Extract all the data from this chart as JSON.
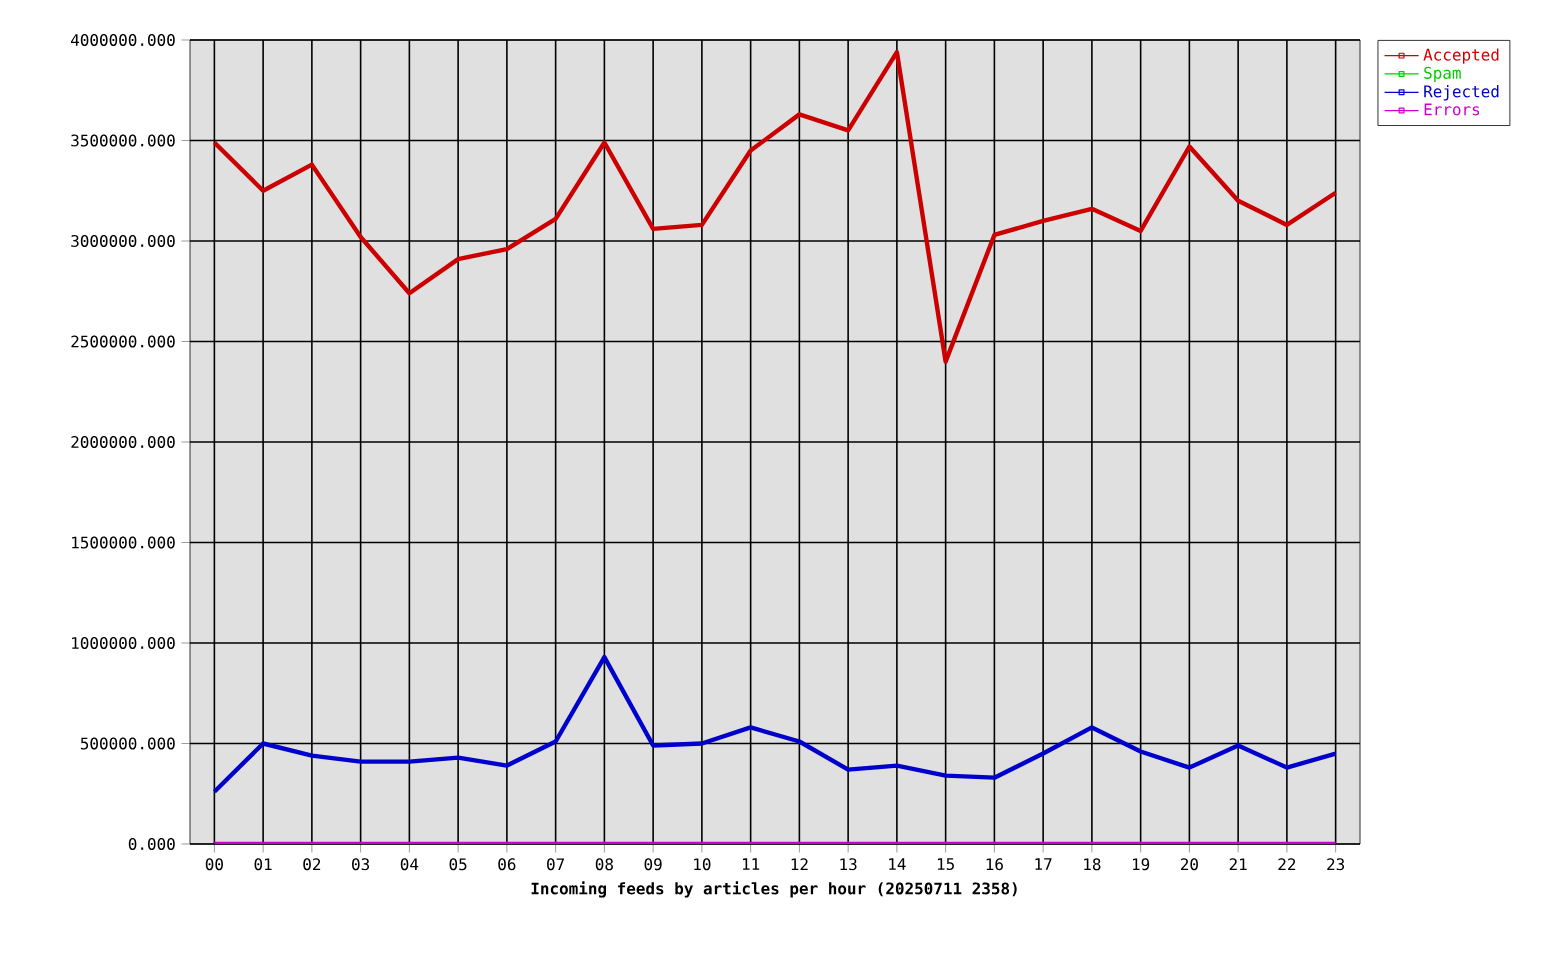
{
  "chart_data": {
    "type": "line",
    "xlabel": "Incoming feeds by articles per hour (20250711 2358)",
    "categories": [
      "00",
      "01",
      "02",
      "03",
      "04",
      "05",
      "06",
      "07",
      "08",
      "09",
      "10",
      "11",
      "12",
      "13",
      "14",
      "15",
      "16",
      "17",
      "18",
      "19",
      "20",
      "21",
      "22",
      "23"
    ],
    "series": [
      {
        "name": "Accepted",
        "color": "#cc0000",
        "values": [
          3490000,
          3250000,
          3380000,
          3020000,
          2740000,
          2910000,
          2960000,
          3110000,
          3490000,
          3060000,
          3080000,
          3450000,
          3630000,
          3550000,
          3940000,
          2400000,
          3030000,
          3100000,
          3160000,
          3050000,
          3470000,
          3200000,
          3080000,
          3240000
        ]
      },
      {
        "name": "Spam",
        "color": "#00cc00",
        "values": [
          null,
          null,
          null,
          null,
          null,
          null,
          null,
          null,
          null,
          null,
          null,
          null,
          null,
          null,
          null,
          null,
          null,
          null,
          null,
          null,
          null,
          null,
          null,
          null
        ]
      },
      {
        "name": "Rejected",
        "color": "#0000cc",
        "values": [
          260000,
          500000,
          440000,
          410000,
          410000,
          430000,
          390000,
          510000,
          930000,
          490000,
          500000,
          580000,
          510000,
          370000,
          390000,
          340000,
          330000,
          450000,
          580000,
          460000,
          380000,
          490000,
          380000,
          450000
        ]
      },
      {
        "name": "Errors",
        "color": "#cc00cc",
        "values": [
          0,
          0,
          0,
          0,
          0,
          0,
          0,
          0,
          0,
          0,
          0,
          0,
          0,
          0,
          0,
          0,
          0,
          0,
          0,
          0,
          0,
          0,
          0,
          0
        ]
      }
    ],
    "ylim": [
      0,
      4000000
    ],
    "yticks": [
      {
        "value": 0,
        "label": "0.000"
      },
      {
        "value": 500000,
        "label": "500000.000"
      },
      {
        "value": 1000000,
        "label": "1000000.000"
      },
      {
        "value": 1500000,
        "label": "1500000.000"
      },
      {
        "value": 2000000,
        "label": "2000000.000"
      },
      {
        "value": 2500000,
        "label": "2500000.000"
      },
      {
        "value": 3000000,
        "label": "3000000.000"
      },
      {
        "value": 3500000,
        "label": "3500000.000"
      },
      {
        "value": 4000000,
        "label": "4000000.000"
      }
    ],
    "grid": true,
    "legend": "top right",
    "marker": "none",
    "line_style": "solid"
  }
}
